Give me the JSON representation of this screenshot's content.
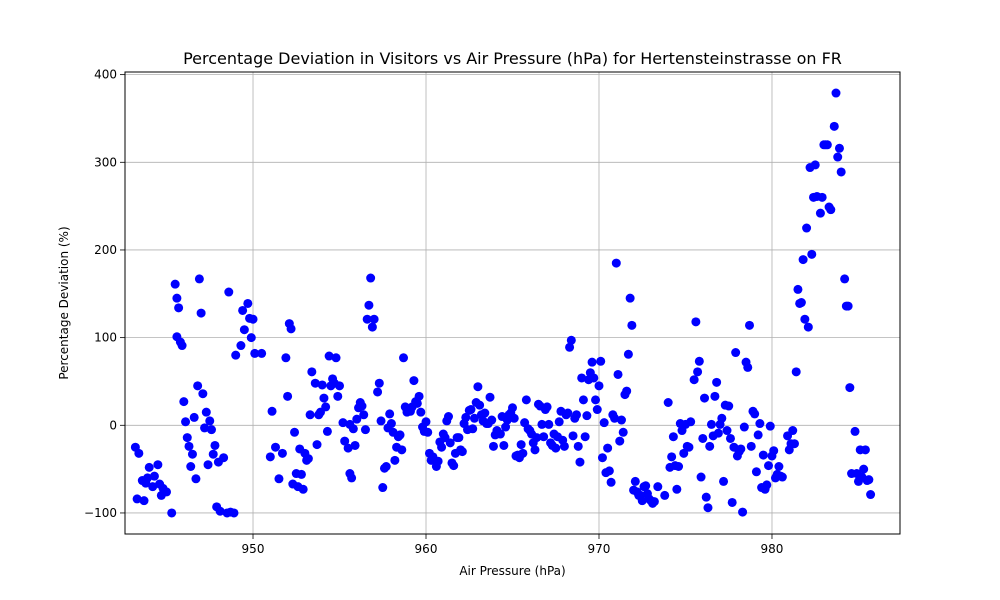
{
  "chart_data": {
    "type": "scatter",
    "title": "Percentage Deviation in Visitors vs Air Pressure (hPa) for Hertensteinstrasse on FR",
    "xlabel": "Air Pressure (hPa)",
    "ylabel": "Percentage Deviation (%)",
    "xlim": [
      942.6,
      987.4
    ],
    "ylim": [
      -124,
      403
    ],
    "xticks": [
      950,
      960,
      970,
      980
    ],
    "yticks": [
      -100,
      0,
      100,
      200,
      300,
      400
    ],
    "xtick_labels": [
      "950",
      "960",
      "970",
      "980"
    ],
    "ytick_labels": [
      "−100",
      "0",
      "100",
      "200",
      "300",
      "400"
    ],
    "grid": true,
    "marker_color": "#0000ff",
    "points": [
      [
        943.2,
        -25
      ],
      [
        943.4,
        -32
      ],
      [
        943.6,
        -63
      ],
      [
        943.8,
        -66
      ],
      [
        943.9,
        -60
      ],
      [
        944.0,
        -48
      ],
      [
        944.2,
        -70
      ],
      [
        944.3,
        -58
      ],
      [
        944.5,
        -45
      ],
      [
        944.6,
        -67
      ],
      [
        944.8,
        -72
      ],
      [
        945.0,
        -76
      ],
      [
        943.3,
        -84
      ],
      [
        943.7,
        -86
      ],
      [
        944.7,
        -80
      ],
      [
        945.3,
        -100
      ],
      [
        945.5,
        161
      ],
      [
        945.6,
        145
      ],
      [
        945.7,
        134
      ],
      [
        945.6,
        101
      ],
      [
        945.8,
        95
      ],
      [
        945.9,
        91
      ],
      [
        946.0,
        27
      ],
      [
        946.1,
        4
      ],
      [
        946.2,
        -14
      ],
      [
        946.3,
        -24
      ],
      [
        946.4,
        -47
      ],
      [
        946.5,
        -33
      ],
      [
        946.6,
        9
      ],
      [
        946.7,
        -61
      ],
      [
        946.8,
        45
      ],
      [
        946.9,
        167
      ],
      [
        947.0,
        128
      ],
      [
        947.1,
        36
      ],
      [
        947.2,
        -3
      ],
      [
        947.3,
        15
      ],
      [
        947.4,
        -45
      ],
      [
        947.5,
        5
      ],
      [
        947.6,
        -5
      ],
      [
        947.7,
        -33
      ],
      [
        947.8,
        -23
      ],
      [
        947.9,
        -93
      ],
      [
        948.0,
        -42
      ],
      [
        948.1,
        -98
      ],
      [
        948.3,
        -37
      ],
      [
        948.5,
        -100
      ],
      [
        948.7,
        -99
      ],
      [
        948.9,
        -100
      ],
      [
        948.6,
        152
      ],
      [
        949.0,
        80
      ],
      [
        949.3,
        91
      ],
      [
        949.4,
        131
      ],
      [
        949.5,
        109
      ],
      [
        949.7,
        139
      ],
      [
        949.8,
        122
      ],
      [
        950.0,
        121
      ],
      [
        949.9,
        100
      ],
      [
        950.1,
        82
      ],
      [
        950.5,
        82
      ],
      [
        951.0,
        -36
      ],
      [
        951.1,
        16
      ],
      [
        951.3,
        -25
      ],
      [
        951.5,
        -61
      ],
      [
        951.7,
        -32
      ],
      [
        951.9,
        77
      ],
      [
        952.0,
        33
      ],
      [
        952.1,
        116
      ],
      [
        952.2,
        110
      ],
      [
        952.4,
        -8
      ],
      [
        952.5,
        -55
      ],
      [
        952.3,
        -67
      ],
      [
        952.6,
        -70
      ],
      [
        952.7,
        -27
      ],
      [
        952.8,
        -56
      ],
      [
        952.9,
        -73
      ],
      [
        953.0,
        -32
      ],
      [
        953.1,
        -40
      ],
      [
        953.2,
        -38
      ],
      [
        953.3,
        12
      ],
      [
        953.4,
        61
      ],
      [
        953.6,
        48
      ],
      [
        953.7,
        -22
      ],
      [
        953.8,
        12
      ],
      [
        953.9,
        15
      ],
      [
        954.0,
        46
      ],
      [
        954.1,
        31
      ],
      [
        954.2,
        21
      ],
      [
        954.3,
        -7
      ],
      [
        954.4,
        79
      ],
      [
        954.5,
        45
      ],
      [
        954.6,
        53
      ],
      [
        954.7,
        48
      ],
      [
        954.8,
        77
      ],
      [
        954.9,
        33
      ],
      [
        955.0,
        45
      ],
      [
        955.2,
        3
      ],
      [
        955.3,
        -18
      ],
      [
        955.5,
        -26
      ],
      [
        955.6,
        -55
      ],
      [
        955.7,
        -60
      ],
      [
        955.6,
        1
      ],
      [
        955.8,
        -4
      ],
      [
        955.9,
        -23
      ],
      [
        956.0,
        7
      ],
      [
        956.1,
        20
      ],
      [
        956.2,
        26
      ],
      [
        956.3,
        22
      ],
      [
        956.4,
        12
      ],
      [
        956.5,
        -5
      ],
      [
        956.6,
        121
      ],
      [
        956.7,
        137
      ],
      [
        956.8,
        168
      ],
      [
        956.9,
        112
      ],
      [
        957.0,
        121
      ],
      [
        957.2,
        38
      ],
      [
        957.3,
        48
      ],
      [
        957.4,
        5
      ],
      [
        957.5,
        -71
      ],
      [
        957.6,
        -49
      ],
      [
        957.7,
        -47
      ],
      [
        957.8,
        -3
      ],
      [
        957.9,
        13
      ],
      [
        958.0,
        2
      ],
      [
        958.1,
        -8
      ],
      [
        958.2,
        -40
      ],
      [
        958.3,
        -25
      ],
      [
        958.4,
        -13
      ],
      [
        958.5,
        -11
      ],
      [
        958.6,
        -28
      ],
      [
        958.7,
        77
      ],
      [
        958.8,
        21
      ],
      [
        958.9,
        15
      ],
      [
        959.0,
        17
      ],
      [
        959.1,
        16
      ],
      [
        959.2,
        21
      ],
      [
        959.3,
        51
      ],
      [
        959.4,
        27
      ],
      [
        959.5,
        25
      ],
      [
        959.6,
        33
      ],
      [
        959.7,
        15
      ],
      [
        959.8,
        -2
      ],
      [
        959.9,
        -7
      ],
      [
        960.0,
        4
      ],
      [
        960.1,
        -8
      ],
      [
        960.2,
        -32
      ],
      [
        960.3,
        -40
      ],
      [
        960.4,
        -36
      ],
      [
        960.5,
        -40
      ],
      [
        960.6,
        -47
      ],
      [
        960.7,
        -41
      ],
      [
        960.8,
        -19
      ],
      [
        960.9,
        -25
      ],
      [
        961.0,
        -10
      ],
      [
        961.1,
        -14
      ],
      [
        961.2,
        5
      ],
      [
        961.3,
        10
      ],
      [
        961.4,
        -20
      ],
      [
        961.5,
        -43
      ],
      [
        961.6,
        -46
      ],
      [
        961.7,
        -32
      ],
      [
        961.8,
        -14
      ],
      [
        961.9,
        -14
      ],
      [
        962.0,
        -28
      ],
      [
        962.1,
        -30
      ],
      [
        962.2,
        2
      ],
      [
        962.3,
        9
      ],
      [
        962.4,
        -5
      ],
      [
        962.5,
        17
      ],
      [
        962.6,
        18
      ],
      [
        962.7,
        -4
      ],
      [
        962.8,
        8
      ],
      [
        962.9,
        26
      ],
      [
        963.0,
        44
      ],
      [
        963.1,
        23
      ],
      [
        963.2,
        12
      ],
      [
        963.3,
        5
      ],
      [
        963.4,
        14
      ],
      [
        963.5,
        2
      ],
      [
        963.6,
        2
      ],
      [
        963.7,
        32
      ],
      [
        963.8,
        6
      ],
      [
        963.9,
        -24
      ],
      [
        964.0,
        -11
      ],
      [
        964.1,
        -6
      ],
      [
        964.2,
        -9
      ],
      [
        964.3,
        -10
      ],
      [
        964.4,
        10
      ],
      [
        964.5,
        -23
      ],
      [
        964.6,
        -2
      ],
      [
        964.7,
        6
      ],
      [
        964.8,
        12
      ],
      [
        964.9,
        14
      ],
      [
        965.0,
        20
      ],
      [
        965.1,
        8
      ],
      [
        965.2,
        -35
      ],
      [
        965.3,
        -34
      ],
      [
        965.4,
        -37
      ],
      [
        965.5,
        -22
      ],
      [
        965.6,
        -32
      ],
      [
        965.7,
        3
      ],
      [
        965.8,
        29
      ],
      [
        965.9,
        -4
      ],
      [
        966.0,
        -6
      ],
      [
        966.1,
        -10
      ],
      [
        966.2,
        -20
      ],
      [
        966.3,
        -28
      ],
      [
        966.4,
        -14
      ],
      [
        966.5,
        24
      ],
      [
        966.6,
        22
      ],
      [
        966.7,
        1
      ],
      [
        966.8,
        -13
      ],
      [
        966.9,
        18
      ],
      [
        967.0,
        21
      ],
      [
        967.1,
        1
      ],
      [
        967.2,
        -20
      ],
      [
        967.3,
        -23
      ],
      [
        967.4,
        -10
      ],
      [
        967.5,
        -26
      ],
      [
        967.6,
        -13
      ],
      [
        967.7,
        4
      ],
      [
        967.8,
        16
      ],
      [
        967.9,
        -17
      ],
      [
        968.0,
        -24
      ],
      [
        968.1,
        12
      ],
      [
        968.2,
        14
      ],
      [
        968.3,
        89
      ],
      [
        968.4,
        97
      ],
      [
        968.5,
        -12
      ],
      [
        968.6,
        8
      ],
      [
        968.7,
        12
      ],
      [
        968.8,
        -24
      ],
      [
        968.9,
        -42
      ],
      [
        969.0,
        54
      ],
      [
        969.1,
        29
      ],
      [
        969.2,
        -13
      ],
      [
        969.3,
        11
      ],
      [
        969.4,
        52
      ],
      [
        969.5,
        60
      ],
      [
        969.6,
        72
      ],
      [
        969.7,
        54
      ],
      [
        969.8,
        29
      ],
      [
        969.9,
        18
      ],
      [
        970.0,
        45
      ],
      [
        970.1,
        73
      ],
      [
        970.2,
        -37
      ],
      [
        970.3,
        3
      ],
      [
        970.4,
        -54
      ],
      [
        970.5,
        -26
      ],
      [
        970.6,
        -52
      ],
      [
        970.7,
        -65
      ],
      [
        970.8,
        12
      ],
      [
        970.9,
        8
      ],
      [
        971.0,
        185
      ],
      [
        971.1,
        58
      ],
      [
        971.2,
        -18
      ],
      [
        971.3,
        6
      ],
      [
        971.4,
        -8
      ],
      [
        971.5,
        35
      ],
      [
        971.6,
        39
      ],
      [
        971.7,
        81
      ],
      [
        971.8,
        145
      ],
      [
        971.9,
        114
      ],
      [
        972.0,
        -74
      ],
      [
        972.1,
        -64
      ],
      [
        972.2,
        -76
      ],
      [
        972.3,
        -80
      ],
      [
        972.4,
        -80
      ],
      [
        972.5,
        -86
      ],
      [
        972.6,
        -70
      ],
      [
        972.7,
        -69
      ],
      [
        972.8,
        -78
      ],
      [
        972.9,
        -84
      ],
      [
        973.0,
        -86
      ],
      [
        973.1,
        -89
      ],
      [
        973.2,
        -87
      ],
      [
        973.4,
        -70
      ],
      [
        973.8,
        -80
      ],
      [
        974.0,
        26
      ],
      [
        974.1,
        -48
      ],
      [
        974.2,
        -36
      ],
      [
        974.3,
        -13
      ],
      [
        974.4,
        -46
      ],
      [
        974.5,
        -73
      ],
      [
        974.6,
        -47
      ],
      [
        974.7,
        2
      ],
      [
        974.8,
        -6
      ],
      [
        974.9,
        -32
      ],
      [
        975.0,
        1
      ],
      [
        975.1,
        -24
      ],
      [
        975.2,
        -25
      ],
      [
        975.3,
        4
      ],
      [
        975.5,
        52
      ],
      [
        975.6,
        118
      ],
      [
        975.7,
        61
      ],
      [
        975.8,
        73
      ],
      [
        975.9,
        -59
      ],
      [
        976.0,
        -15
      ],
      [
        976.1,
        31
      ],
      [
        976.2,
        -82
      ],
      [
        976.3,
        -94
      ],
      [
        976.4,
        -24
      ],
      [
        976.5,
        1
      ],
      [
        976.6,
        -12
      ],
      [
        976.7,
        33
      ],
      [
        976.8,
        49
      ],
      [
        976.9,
        -9
      ],
      [
        977.0,
        1
      ],
      [
        977.1,
        8
      ],
      [
        977.2,
        -64
      ],
      [
        977.3,
        23
      ],
      [
        977.4,
        -6
      ],
      [
        977.5,
        22
      ],
      [
        977.6,
        -15
      ],
      [
        977.7,
        -88
      ],
      [
        977.8,
        -25
      ],
      [
        977.9,
        83
      ],
      [
        978.0,
        -35
      ],
      [
        978.1,
        -30
      ],
      [
        978.2,
        -27
      ],
      [
        978.3,
        -99
      ],
      [
        978.4,
        -2
      ],
      [
        978.5,
        72
      ],
      [
        978.6,
        66
      ],
      [
        978.7,
        114
      ],
      [
        978.8,
        -24
      ],
      [
        978.9,
        16
      ],
      [
        979.0,
        13
      ],
      [
        979.1,
        -53
      ],
      [
        979.2,
        -11
      ],
      [
        979.3,
        2
      ],
      [
        979.4,
        -71
      ],
      [
        979.5,
        -34
      ],
      [
        979.6,
        -73
      ],
      [
        979.7,
        -68
      ],
      [
        979.8,
        -46
      ],
      [
        979.9,
        -1
      ],
      [
        980.0,
        -35
      ],
      [
        980.1,
        -29
      ],
      [
        980.2,
        -60
      ],
      [
        980.3,
        -56
      ],
      [
        980.4,
        -47
      ],
      [
        980.5,
        -58
      ],
      [
        980.6,
        -59
      ],
      [
        980.9,
        -12
      ],
      [
        981.0,
        -28
      ],
      [
        981.1,
        -21
      ],
      [
        981.2,
        -6
      ],
      [
        981.3,
        -21
      ],
      [
        981.4,
        61
      ],
      [
        981.5,
        155
      ],
      [
        981.6,
        139
      ],
      [
        981.7,
        140
      ],
      [
        981.8,
        189
      ],
      [
        981.9,
        121
      ],
      [
        982.0,
        225
      ],
      [
        982.1,
        112
      ],
      [
        982.2,
        294
      ],
      [
        982.3,
        195
      ],
      [
        982.4,
        260
      ],
      [
        982.5,
        297
      ],
      [
        982.6,
        261
      ],
      [
        982.8,
        242
      ],
      [
        982.9,
        260
      ],
      [
        983.0,
        320
      ],
      [
        983.1,
        320
      ],
      [
        983.2,
        320
      ],
      [
        983.3,
        249
      ],
      [
        983.4,
        246
      ],
      [
        983.6,
        341
      ],
      [
        983.7,
        379
      ],
      [
        983.8,
        306
      ],
      [
        983.9,
        316
      ],
      [
        984.0,
        289
      ],
      [
        984.2,
        167
      ],
      [
        984.3,
        136
      ],
      [
        984.4,
        136
      ],
      [
        984.5,
        43
      ],
      [
        984.6,
        -55
      ],
      [
        984.8,
        -7
      ],
      [
        984.9,
        -55
      ],
      [
        985.0,
        -64
      ],
      [
        985.1,
        -28
      ],
      [
        985.2,
        -59
      ],
      [
        985.3,
        -50
      ],
      [
        985.4,
        -28
      ],
      [
        985.5,
        -63
      ],
      [
        985.6,
        -62
      ],
      [
        985.7,
        -79
      ]
    ]
  }
}
